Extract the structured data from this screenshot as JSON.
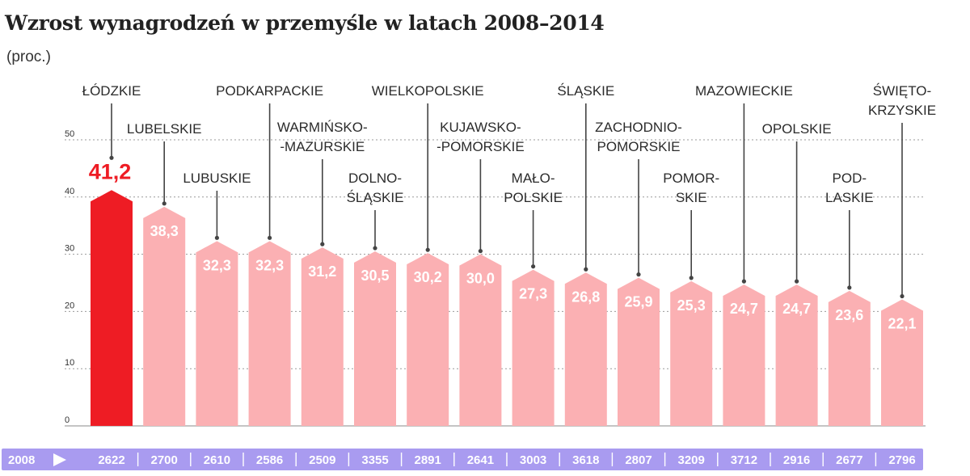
{
  "chart_data": {
    "type": "bar",
    "title": "Wzrost wynagrodzeń w przemyśle w latach 2008–2014",
    "subtitle": "(proc.)",
    "ylim": [
      0,
      50
    ],
    "yticks": [
      0,
      10,
      20,
      30,
      40,
      50
    ],
    "grid": true,
    "categories": [
      [
        "ŁÓDZKIE"
      ],
      [
        "LUBELSKIE"
      ],
      [
        "LUBUSKIE"
      ],
      [
        "PODKARPACKIE"
      ],
      [
        "WARMIŃSKO-",
        "-MAZURSKIE"
      ],
      [
        "DOLNO-",
        "ŚLĄSKIE"
      ],
      [
        "WIELKOPOLSKIE"
      ],
      [
        "KUJAWSKO-",
        "-POMORSKIE"
      ],
      [
        "MAŁO-",
        "POLSKIE"
      ],
      [
        "ŚLĄSKIE"
      ],
      [
        "ZACHODNIO-",
        "POMORSKIE"
      ],
      [
        "POMOR-",
        "SKIE"
      ],
      [
        "MAZOWIECKIE"
      ],
      [
        "OPOLSKIE"
      ],
      [
        "POD-",
        "LASKIE"
      ],
      [
        "ŚWIĘTO-",
        "KRZYSKIE"
      ]
    ],
    "values": [
      41.2,
      38.3,
      32.3,
      32.3,
      31.2,
      30.5,
      30.2,
      30.0,
      27.3,
      26.8,
      25.9,
      25.3,
      24.7,
      24.7,
      23.6,
      22.1
    ],
    "value_labels": [
      "41,2",
      "38,3",
      "32,3",
      "32,3",
      "31,2",
      "30,5",
      "30,2",
      "30,0",
      "27,3",
      "26,8",
      "25,9",
      "25,3",
      "24,7",
      "24,7",
      "23,6",
      "22,1"
    ],
    "highlight_index": 0,
    "colors": {
      "highlight": "#ee1c24",
      "bar": "#fbb0b3",
      "footer": "#a99bf0",
      "grid": "#9a9a9a"
    },
    "footer": {
      "label": "2008",
      "arrow_icon": "play-arrow-icon",
      "values": [
        "2622",
        "2700",
        "2610",
        "2586",
        "2509",
        "3355",
        "2891",
        "2641",
        "3003",
        "3618",
        "2807",
        "3209",
        "3712",
        "2916",
        "2677",
        "2796"
      ]
    }
  }
}
